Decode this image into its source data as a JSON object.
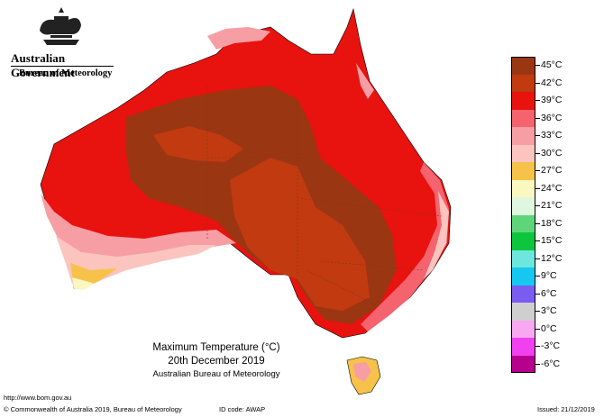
{
  "branding": {
    "government": "Australian Government",
    "bureau": "Bureau of Meteorology"
  },
  "legend": [
    {
      "label": "45°C",
      "color": "#9b3612"
    },
    {
      "label": "42°C",
      "color": "#c23a10"
    },
    {
      "label": "39°C",
      "color": "#e8120f"
    },
    {
      "label": "36°C",
      "color": "#f5636e"
    },
    {
      "label": "33°C",
      "color": "#f79ea4"
    },
    {
      "label": "30°C",
      "color": "#fbc4bf"
    },
    {
      "label": "27°C",
      "color": "#f6c24a"
    },
    {
      "label": "24°C",
      "color": "#fbf7c0"
    },
    {
      "label": "21°C",
      "color": "#dff7de"
    },
    {
      "label": "18°C",
      "color": "#5fd57a"
    },
    {
      "label": "15°C",
      "color": "#0ec63d"
    },
    {
      "label": "12°C",
      "color": "#6de6de"
    },
    {
      "label": "9°C",
      "color": "#16c8f0"
    },
    {
      "label": "6°C",
      "color": "#7a5cf0"
    },
    {
      "label": "3°C",
      "color": "#cfcfcf"
    },
    {
      "label": "0°C",
      "color": "#f7a8f0"
    },
    {
      "label": "-3°C",
      "color": "#f040f0"
    },
    {
      "label": "-6°C",
      "color": "#b8008e"
    }
  ],
  "caption": {
    "title": "Maximum Temperature (°C)",
    "date": "20th December 2019",
    "source": "Australian Bureau of Meteorology"
  },
  "footer": {
    "url": "http://www.bom.gov.au",
    "copyright": "© Commonwealth of Australia 2019, Bureau of Meteorology",
    "id_code": "ID code: AWAP",
    "issued": "Issued: 21/12/2019"
  }
}
